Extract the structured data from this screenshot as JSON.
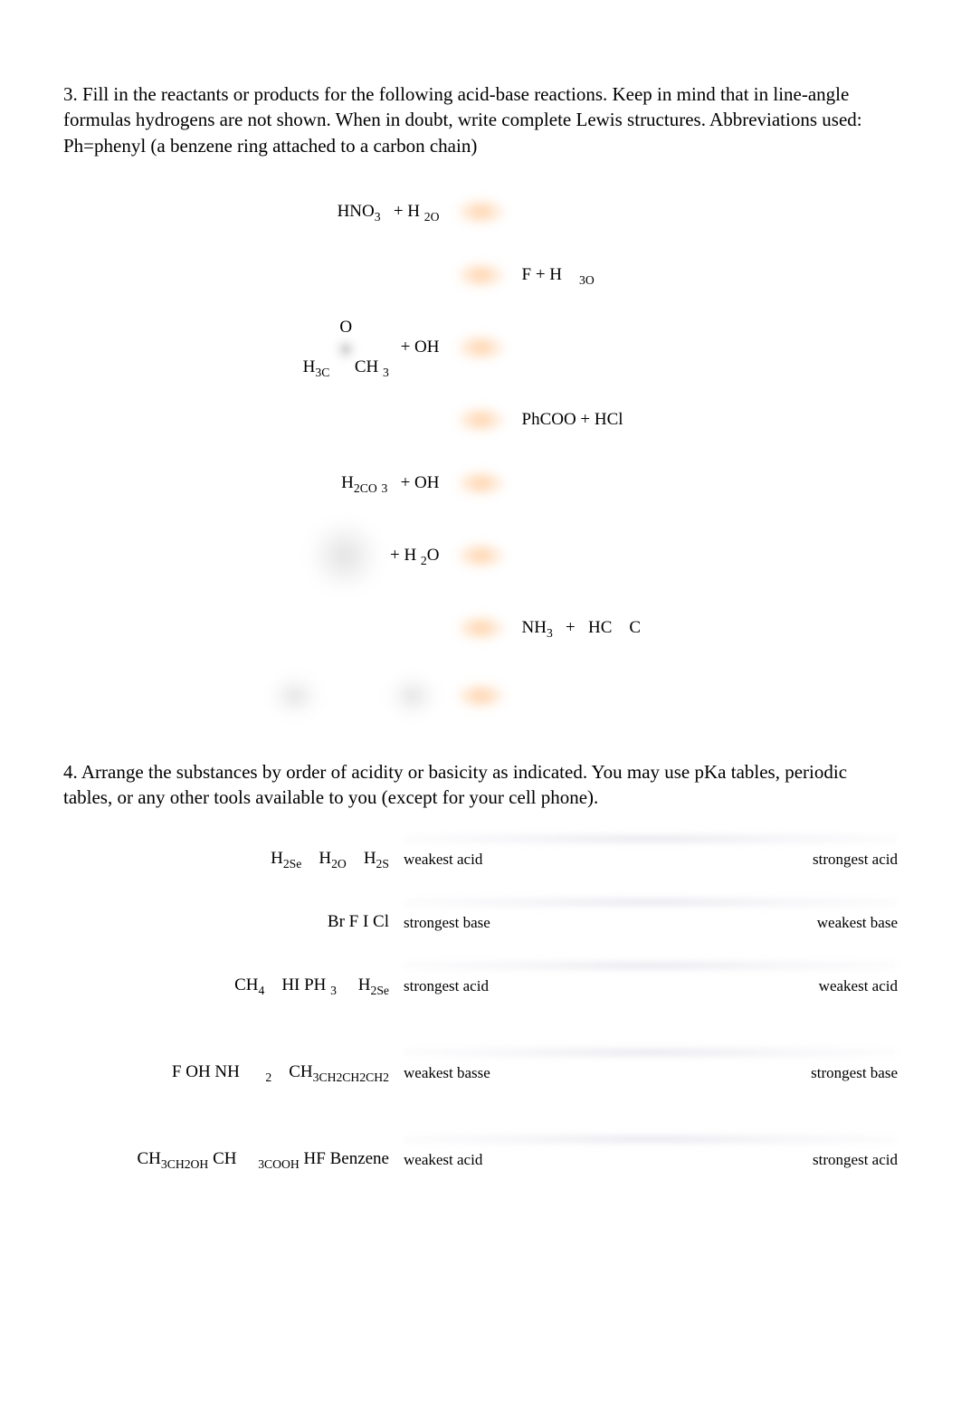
{
  "q3": {
    "prompt": "3. Fill in the reactants or products for the following acid-base reactions. Keep in mind that in line-angle formulas hydrogens are not shown. When in doubt, write complete Lewis structures. Abbreviations used: Ph=phenyl (a benzene ring attached to a carbon chain)",
    "reactions": [
      {
        "left": "HNO_3   + H _2O",
        "right": ""
      },
      {
        "left": "",
        "right": "F + H    _3O"
      },
      {
        "left": "ACETONE + OH",
        "right": ""
      },
      {
        "left": "",
        "right": "PhCOO + HCl"
      },
      {
        "left": "H_2CO _3   + OH",
        "right": ""
      },
      {
        "left": "RING + H _2O",
        "right": ""
      },
      {
        "left": "",
        "right": "NH_3   +   HC    C"
      },
      {
        "left": "BLUR2",
        "right": ""
      }
    ],
    "acetone": {
      "top": "O",
      "left": "H_3C",
      "right": "CH _3"
    }
  },
  "q4": {
    "prompt": "4. Arrange the substances by order of acidity or basicity as indicated. You may use pKa tables, periodic tables, or any other tools available to you (except for your cell phone).",
    "rows": [
      {
        "items": "H_2Se    H_2O    H_2S",
        "left_end": "weakest acid",
        "right_end": "strongest acid"
      },
      {
        "items": "Br F I Cl",
        "left_end": "strongest base",
        "right_end": "weakest base"
      },
      {
        "items": "CH_4    HI PH _3     H_2Se",
        "left_end": "strongest acid",
        "right_end": "weakest acid"
      },
      {
        "items": "F OH NH      _2    CH_3CH_2CH_2CH_2",
        "left_end": "weakest basse",
        "right_end": "strongest base",
        "gap_before_line": true
      },
      {
        "items": "CH_3CH_2OH CH     _3COOH HF Benzene",
        "left_end": "weakest acid",
        "right_end": "strongest acid",
        "gap_before_line": true
      }
    ]
  }
}
